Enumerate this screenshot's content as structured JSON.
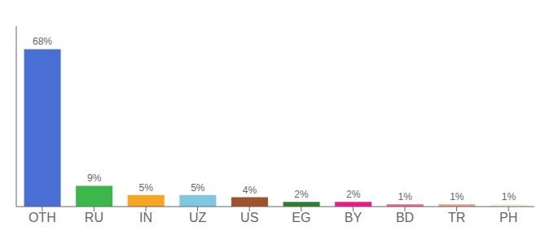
{
  "chart_data": {
    "type": "bar",
    "categories": [
      "OTH",
      "RU",
      "IN",
      "UZ",
      "US",
      "EG",
      "BY",
      "BD",
      "TR",
      "PH"
    ],
    "values": [
      68,
      9,
      5,
      5,
      4,
      2,
      2,
      1,
      1,
      1
    ],
    "value_labels": [
      "68%",
      "9%",
      "5%",
      "5%",
      "4%",
      "2%",
      "2%",
      "1%",
      "1%",
      "1%"
    ],
    "colors": [
      "#4a6fd4",
      "#3cb84a",
      "#f5a623",
      "#7ec8e3",
      "#a0522d",
      "#2e7d32",
      "#f01888",
      "#f06292",
      "#e8a090",
      "#f5f0d8"
    ],
    "ylim": [
      0,
      78
    ],
    "grid": false,
    "data_labels": true,
    "tick_labels": "x"
  }
}
